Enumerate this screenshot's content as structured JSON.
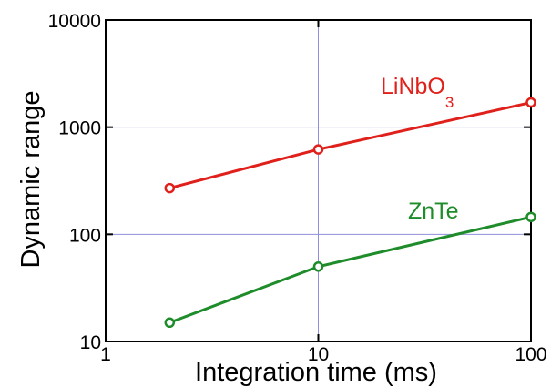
{
  "chart_data": {
    "type": "line",
    "xlabel": "Integration time (ms)",
    "ylabel": "Dynamic range",
    "x_scale": "log",
    "y_scale": "log",
    "xlim": [
      1,
      100
    ],
    "ylim": [
      10,
      10000
    ],
    "x_ticks": [
      "1",
      "10",
      "100"
    ],
    "y_ticks": [
      "10",
      "100",
      "1000",
      "10000"
    ],
    "grid": true,
    "series": [
      {
        "name": "LiNbO3",
        "label_main": "LiNbO",
        "label_sub": "3",
        "color": "#e0201b",
        "x": [
          2,
          10,
          100
        ],
        "y": [
          270,
          620,
          1700
        ]
      },
      {
        "name": "ZnTe",
        "label_main": "ZnTe",
        "label_sub": "",
        "color": "#1e8c2a",
        "x": [
          2,
          10,
          100
        ],
        "y": [
          15,
          50,
          145
        ]
      }
    ],
    "grid_color": "#8f8fdc",
    "axis_color": "#000000"
  }
}
